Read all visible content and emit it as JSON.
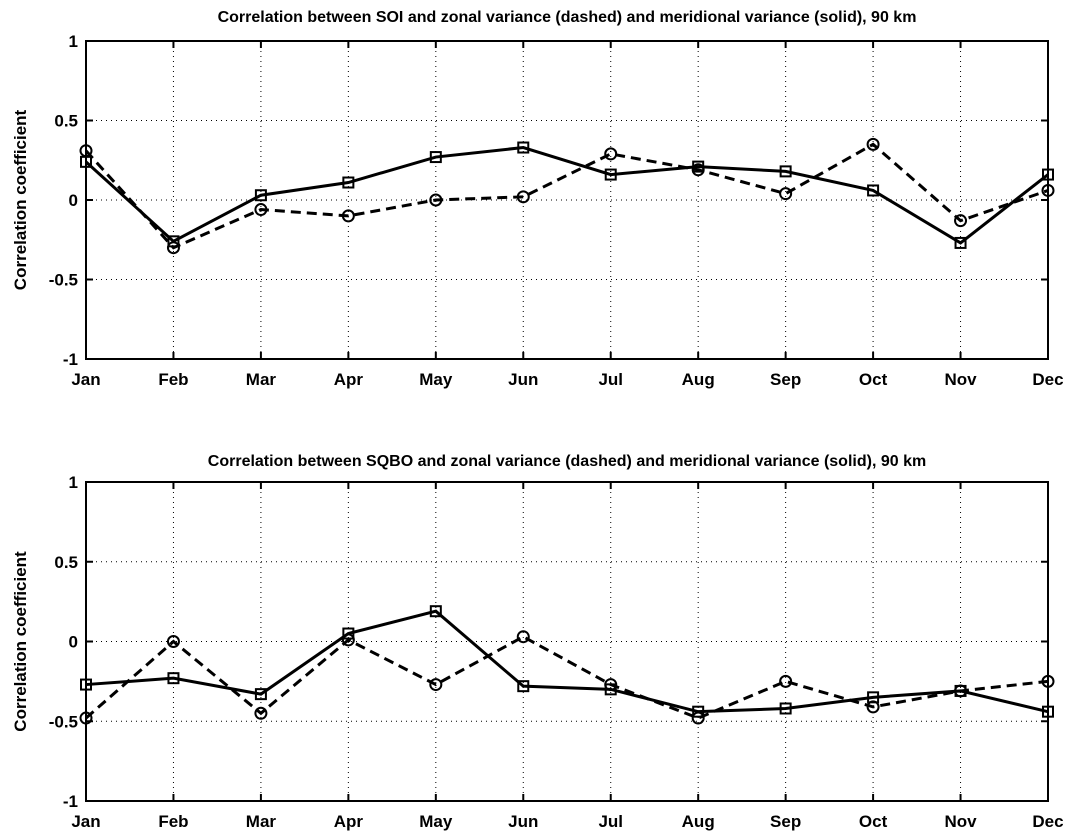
{
  "chart_data": [
    {
      "type": "line",
      "title": "Correlation between SOI and zonal variance (dashed) and meridional variance (solid), 90 km",
      "xlabel": "",
      "ylabel": "Correlation coefficient",
      "categories": [
        "Jan",
        "Feb",
        "Mar",
        "Apr",
        "May",
        "Jun",
        "Jul",
        "Aug",
        "Sep",
        "Oct",
        "Nov",
        "Dec"
      ],
      "ylim": [
        -1,
        1
      ],
      "yticks": [
        -1,
        -0.5,
        0,
        0.5,
        1
      ],
      "ytick_labels": [
        "-1",
        "-0.5",
        "0",
        "0.5",
        "1"
      ],
      "grid": true,
      "series": [
        {
          "style": "dashed",
          "marker": "circle",
          "values": [
            0.31,
            -0.3,
            -0.06,
            -0.1,
            0.0,
            0.02,
            0.29,
            0.19,
            0.04,
            0.35,
            -0.13,
            0.06
          ]
        },
        {
          "style": "solid",
          "marker": "square",
          "values": [
            0.24,
            -0.26,
            0.03,
            0.11,
            0.27,
            0.33,
            0.16,
            0.21,
            0.18,
            0.06,
            -0.27,
            0.16
          ]
        }
      ]
    },
    {
      "type": "line",
      "title": "Correlation between SQBO and zonal variance (dashed) and meridional variance (solid), 90 km",
      "xlabel": "",
      "ylabel": "Correlation coefficient",
      "categories": [
        "Jan",
        "Feb",
        "Mar",
        "Apr",
        "May",
        "Jun",
        "Jul",
        "Aug",
        "Sep",
        "Oct",
        "Nov",
        "Dec"
      ],
      "ylim": [
        -1,
        1
      ],
      "yticks": [
        -1,
        -0.5,
        0,
        0.5,
        1
      ],
      "ytick_labels": [
        "-1",
        "-0.5",
        "0",
        "0.5",
        "1"
      ],
      "grid": true,
      "series": [
        {
          "style": "dashed",
          "marker": "circle",
          "values": [
            -0.48,
            0.0,
            -0.45,
            0.01,
            -0.27,
            0.03,
            -0.27,
            -0.48,
            -0.25,
            -0.41,
            -0.31,
            -0.25
          ]
        },
        {
          "style": "solid",
          "marker": "square",
          "values": [
            -0.27,
            -0.23,
            -0.33,
            0.05,
            0.19,
            -0.28,
            -0.3,
            -0.44,
            -0.42,
            -0.35,
            -0.31,
            -0.44
          ]
        }
      ]
    }
  ]
}
